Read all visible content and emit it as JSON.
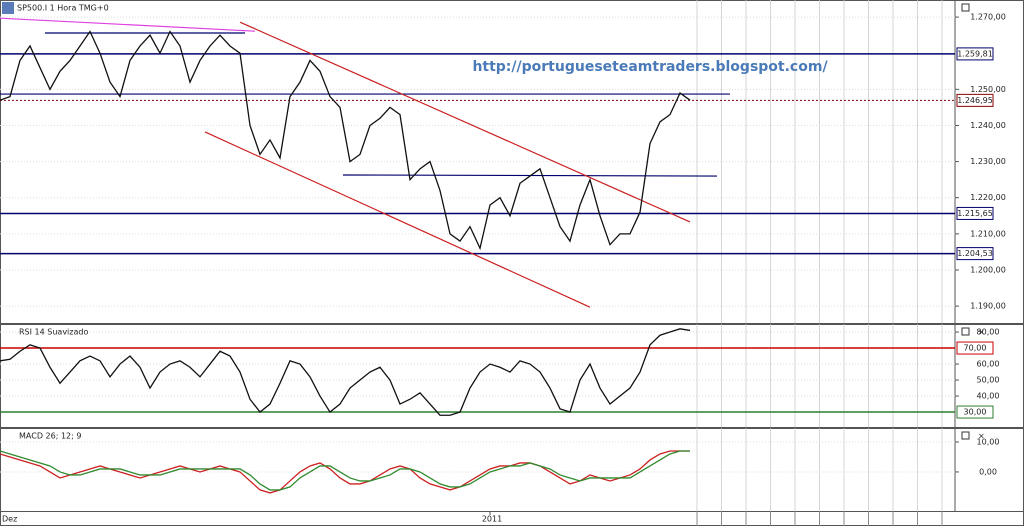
{
  "chart_data": [
    {
      "type": "line",
      "title": "SP500.I 1 Hora TMG+0",
      "annotation": "http://portugueseteamtraders.blogspot.com/",
      "xlim": [
        0,
        95.5
      ],
      "xticks": [
        {
          "value": 0,
          "label": "Dez"
        },
        {
          "value": 49,
          "label": "2011"
        }
      ],
      "ylim": [
        1185.6,
        1273.9
      ],
      "yticks": [
        {
          "value": 1190,
          "label": "1.190,00"
        },
        {
          "value": 1200,
          "label": "1.200,00"
        },
        {
          "value": 1210,
          "label": "1.210,00"
        },
        {
          "value": 1220,
          "label": "1.220,00"
        },
        {
          "value": 1230,
          "label": "1.230,00"
        },
        {
          "value": 1240,
          "label": "1.240,00"
        },
        {
          "value": 1250,
          "label": "1.250,00"
        },
        {
          "value": 1270,
          "label": "1.270,00"
        }
      ],
      "grid": true,
      "series": [
        {
          "color": "#111111",
          "values": [
            1247,
            1248,
            1258,
            1262,
            1256,
            1250,
            1255,
            1258,
            1262,
            1266,
            1260,
            1252,
            1248,
            1258,
            1262,
            1265,
            1260,
            1266,
            1262,
            1252,
            1258,
            1262,
            1265,
            1262,
            1260,
            1240,
            1232,
            1236,
            1231,
            1248,
            1252,
            1258,
            1255,
            1248,
            1245,
            1230,
            1232,
            1240,
            1242,
            1245,
            1243,
            1225,
            1228,
            1230,
            1222,
            1210,
            1208,
            1212,
            1206,
            1218,
            1220,
            1215,
            1224,
            1226,
            1228,
            1220,
            1212,
            1208,
            1218,
            1225,
            1215,
            1207,
            1210,
            1210,
            1216,
            1235,
            1241,
            1243,
            1249,
            1247
          ]
        }
      ],
      "levels": [
        {
          "value": 1259.81,
          "label": "1.259,81",
          "color": "#00006e",
          "dash": false
        },
        {
          "value": 1246.95,
          "label": "1.246,95",
          "color": "#8b0000",
          "dash": true
        },
        {
          "value": 1215.65,
          "label": "1.215,65",
          "color": "#00006e",
          "dash": false
        },
        {
          "value": 1204.53,
          "label": "1.204,53",
          "color": "#00006e",
          "dash": false
        }
      ],
      "trendlines": [
        {
          "color": "#e040e0",
          "from": [
            0,
            1269.7
          ],
          "to": [
            25.5,
            1266.1
          ]
        },
        {
          "color": "#00006e",
          "from": [
            4.5,
            1265.6
          ],
          "to": [
            24.5,
            1265.6
          ]
        },
        {
          "color": "#00006e",
          "from": [
            0,
            1248.7
          ],
          "to": [
            73,
            1248.7
          ]
        },
        {
          "color": "#00006e",
          "from": [
            34.3,
            1226.3
          ],
          "to": [
            71.7,
            1226
          ]
        },
        {
          "color": "#cc2020",
          "from": [
            24,
            1268.6
          ],
          "to": [
            69,
            1213.3
          ]
        },
        {
          "color": "#cc2020",
          "from": [
            20.5,
            1238.2
          ],
          "to": [
            59,
            1189.7
          ]
        }
      ]
    },
    {
      "type": "line",
      "title": "RSI 14 Suavizado",
      "ylim": [
        21.9,
        84.4
      ],
      "yticks": [
        {
          "value": 40,
          "label": "40,00"
        },
        {
          "value": 50,
          "label": "50,00"
        },
        {
          "value": 60,
          "label": "60,00"
        },
        {
          "value": 80,
          "label": "80,00"
        }
      ],
      "series": [
        {
          "color": "#111111",
          "values": [
            62,
            63,
            68,
            72,
            70,
            58,
            48,
            55,
            62,
            65,
            62,
            52,
            60,
            65,
            58,
            45,
            55,
            60,
            62,
            58,
            52,
            60,
            68,
            65,
            55,
            38,
            30,
            35,
            48,
            62,
            60,
            52,
            40,
            30,
            35,
            45,
            50,
            55,
            58,
            50,
            35,
            38,
            42,
            35,
            28,
            28,
            30,
            45,
            55,
            60,
            58,
            55,
            62,
            60,
            55,
            45,
            32,
            30,
            50,
            60,
            45,
            35,
            40,
            45,
            55,
            72,
            78,
            80,
            82,
            81
          ]
        }
      ],
      "levels": [
        {
          "value": 70,
          "label": "70,00",
          "color": "#cc0000",
          "dash": false
        },
        {
          "value": 30,
          "label": "30,00",
          "color": "#2e7d2e",
          "dash": false
        }
      ]
    },
    {
      "type": "line",
      "title": "MACD 26; 12; 9",
      "ylim": [
        -12.7,
        14
      ],
      "yticks": [
        {
          "value": 0,
          "label": "0,00"
        },
        {
          "value": 10,
          "label": "10,00"
        }
      ],
      "series": [
        {
          "color": "#cc2020",
          "values": [
            6,
            5,
            4,
            3,
            2,
            0,
            -2,
            -1,
            0,
            1,
            2,
            1,
            0,
            -1,
            -2,
            -1,
            0,
            1,
            2,
            1,
            0,
            1,
            2,
            1,
            0,
            -3,
            -6,
            -7,
            -6,
            -3,
            0,
            2,
            3,
            1,
            -2,
            -4,
            -4,
            -3,
            -1,
            1,
            2,
            1,
            -2,
            -4,
            -5,
            -6,
            -5,
            -3,
            -1,
            1,
            2,
            2,
            3,
            3,
            2,
            0,
            -2,
            -4,
            -3,
            -1,
            -2,
            -3,
            -2,
            -1,
            1,
            4,
            6,
            7,
            7,
            7
          ]
        },
        {
          "color": "#2e8b2e",
          "values": [
            7,
            6,
            5,
            4,
            3,
            2,
            0,
            -1,
            -1,
            0,
            1,
            1,
            1,
            0,
            -1,
            -1,
            -1,
            0,
            1,
            1,
            1,
            1,
            1,
            1,
            1,
            -1,
            -4,
            -6,
            -6,
            -5,
            -2,
            0,
            2,
            2,
            0,
            -2,
            -3,
            -3,
            -2,
            -1,
            1,
            1,
            0,
            -2,
            -4,
            -5,
            -5,
            -4,
            -2,
            0,
            1,
            2,
            2,
            3,
            2,
            1,
            -1,
            -2,
            -3,
            -2,
            -2,
            -2,
            -2,
            -2,
            0,
            2,
            4,
            6,
            7,
            7
          ]
        }
      ]
    }
  ]
}
